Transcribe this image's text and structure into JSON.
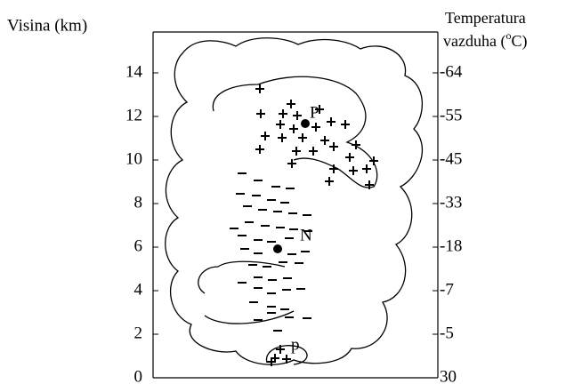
{
  "left_axis": {
    "title": "Visina (km)",
    "ticks": [
      "0",
      "2",
      "4",
      "6",
      "8",
      "10",
      "12",
      "14"
    ]
  },
  "right_axis": {
    "title_line1": "Temperatura",
    "title_line2_parts": [
      "vazduha (",
      "o",
      "C)"
    ],
    "ticks": [
      "30",
      "-5",
      "-7",
      "-18",
      "-33",
      "-45",
      "-55",
      "-64"
    ]
  },
  "labels": {
    "upper_positive": "P",
    "negative": "N",
    "lower_positive": "p"
  }
}
